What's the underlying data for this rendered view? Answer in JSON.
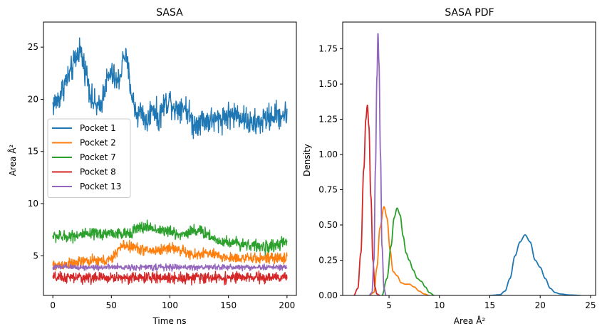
{
  "chart_data": [
    {
      "type": "line",
      "title": "SASA",
      "xlabel": "Time ns",
      "ylabel": "Area Å²",
      "xlim": [
        -8,
        208
      ],
      "ylim": [
        1.2,
        27.4
      ],
      "xticks": [
        0,
        50,
        100,
        150,
        200
      ],
      "yticks": [
        5,
        10,
        15,
        20,
        25
      ],
      "grid": false,
      "legend": "center-left",
      "series": [
        {
          "name": "Pocket 1",
          "color": "#1f77b4",
          "x": [
            0,
            5,
            10,
            15,
            20,
            23,
            26,
            30,
            33,
            36,
            40,
            45,
            50,
            55,
            58,
            61,
            64,
            68,
            72,
            76,
            80,
            85,
            90,
            95,
            100,
            105,
            110,
            115,
            120,
            125,
            130,
            140,
            150,
            160,
            170,
            180,
            190,
            200
          ],
          "y": [
            19.5,
            20.0,
            21.5,
            22.5,
            24.0,
            25.0,
            23.5,
            22.0,
            20.0,
            19.5,
            19.0,
            21.5,
            22.5,
            21.5,
            22.5,
            24.5,
            23.0,
            20.0,
            18.5,
            19.0,
            17.5,
            19.5,
            18.0,
            19.5,
            20.0,
            19.0,
            19.5,
            19.0,
            17.5,
            18.0,
            18.0,
            18.0,
            18.5,
            18.5,
            17.5,
            18.0,
            18.5,
            18.5
          ],
          "noise": 1.1
        },
        {
          "name": "Pocket 2",
          "color": "#ff7f0e",
          "x": [
            0,
            10,
            20,
            30,
            40,
            50,
            55,
            60,
            70,
            80,
            90,
            100,
            110,
            120,
            130,
            140,
            150,
            160,
            170,
            180,
            190,
            200
          ],
          "y": [
            4.0,
            4.2,
            4.3,
            4.5,
            4.5,
            4.6,
            5.5,
            6.0,
            5.8,
            5.5,
            5.5,
            5.8,
            5.5,
            5.0,
            5.3,
            5.0,
            4.8,
            4.8,
            4.7,
            4.8,
            4.7,
            4.8
          ],
          "noise": 0.45
        },
        {
          "name": "Pocket 7",
          "color": "#2ca02c",
          "x": [
            0,
            10,
            20,
            30,
            40,
            50,
            60,
            70,
            80,
            90,
            100,
            110,
            120,
            130,
            140,
            150,
            160,
            170,
            180,
            190,
            200
          ],
          "y": [
            6.9,
            6.8,
            7.0,
            7.0,
            7.1,
            7.2,
            7.0,
            7.5,
            7.8,
            7.5,
            7.3,
            7.0,
            7.5,
            7.2,
            6.5,
            6.3,
            6.2,
            6.0,
            5.8,
            6.0,
            6.3
          ],
          "noise": 0.5
        },
        {
          "name": "Pocket 8",
          "color": "#d62728",
          "x": [
            0,
            50,
            100,
            150,
            200
          ],
          "y": [
            2.9,
            2.9,
            2.9,
            2.9,
            2.9
          ],
          "noise": 0.45
        },
        {
          "name": "Pocket 13",
          "color": "#9467bd",
          "x": [
            0,
            50,
            100,
            150,
            200
          ],
          "y": [
            3.9,
            3.9,
            3.9,
            3.9,
            3.9
          ],
          "noise": 0.25
        }
      ]
    },
    {
      "type": "line",
      "title": "SASA PDF",
      "xlabel": "Area Å²",
      "ylabel": "Density",
      "xlim": [
        0.4,
        25.5
      ],
      "ylim": [
        0,
        1.94
      ],
      "xticks": [
        5,
        10,
        15,
        20,
        25
      ],
      "yticks": [
        0.0,
        0.25,
        0.5,
        0.75,
        1.0,
        1.25,
        1.5,
        1.75
      ],
      "grid": false,
      "series": [
        {
          "name": "Pocket 1",
          "color": "#1f77b4",
          "x": [
            15.0,
            16.0,
            16.5,
            17.0,
            17.5,
            18.0,
            18.5,
            19.0,
            19.5,
            20.0,
            20.5,
            21.0,
            21.5,
            22.0,
            23.0,
            24.0
          ],
          "y": [
            0.0,
            0.005,
            0.03,
            0.12,
            0.28,
            0.38,
            0.43,
            0.38,
            0.25,
            0.2,
            0.12,
            0.05,
            0.02,
            0.01,
            0.003,
            0.0
          ]
        },
        {
          "name": "Pocket 2",
          "color": "#ff7f0e",
          "x": [
            3.0,
            3.5,
            3.8,
            4.1,
            4.5,
            4.8,
            5.1,
            5.4,
            5.8,
            6.2,
            6.6,
            7.0,
            7.5,
            8.0,
            8.5,
            9.0
          ],
          "y": [
            0.0,
            0.02,
            0.2,
            0.48,
            0.63,
            0.55,
            0.32,
            0.17,
            0.14,
            0.09,
            0.08,
            0.08,
            0.06,
            0.03,
            0.01,
            0.0
          ]
        },
        {
          "name": "Pocket 7",
          "color": "#2ca02c",
          "x": [
            4.3,
            4.8,
            5.2,
            5.5,
            5.8,
            6.1,
            6.4,
            6.7,
            7.0,
            7.4,
            7.8,
            8.2,
            8.6,
            9.0,
            9.5
          ],
          "y": [
            0.0,
            0.12,
            0.35,
            0.55,
            0.62,
            0.57,
            0.42,
            0.3,
            0.25,
            0.18,
            0.12,
            0.1,
            0.06,
            0.02,
            0.0
          ]
        },
        {
          "name": "Pocket 8",
          "color": "#d62728",
          "x": [
            1.5,
            1.9,
            2.2,
            2.5,
            2.7,
            2.85,
            3.0,
            3.2,
            3.4,
            3.6,
            3.8,
            4.1
          ],
          "y": [
            0.0,
            0.05,
            0.3,
            0.9,
            1.25,
            1.35,
            1.2,
            0.7,
            0.25,
            0.06,
            0.01,
            0.0
          ]
        },
        {
          "name": "Pocket 13",
          "color": "#9467bd",
          "x": [
            3.0,
            3.3,
            3.5,
            3.65,
            3.8,
            3.9,
            4.0,
            4.15,
            4.3,
            4.5,
            4.7
          ],
          "y": [
            0.0,
            0.02,
            0.25,
            0.9,
            1.55,
            1.86,
            1.65,
            1.0,
            0.35,
            0.05,
            0.0
          ]
        }
      ]
    }
  ]
}
